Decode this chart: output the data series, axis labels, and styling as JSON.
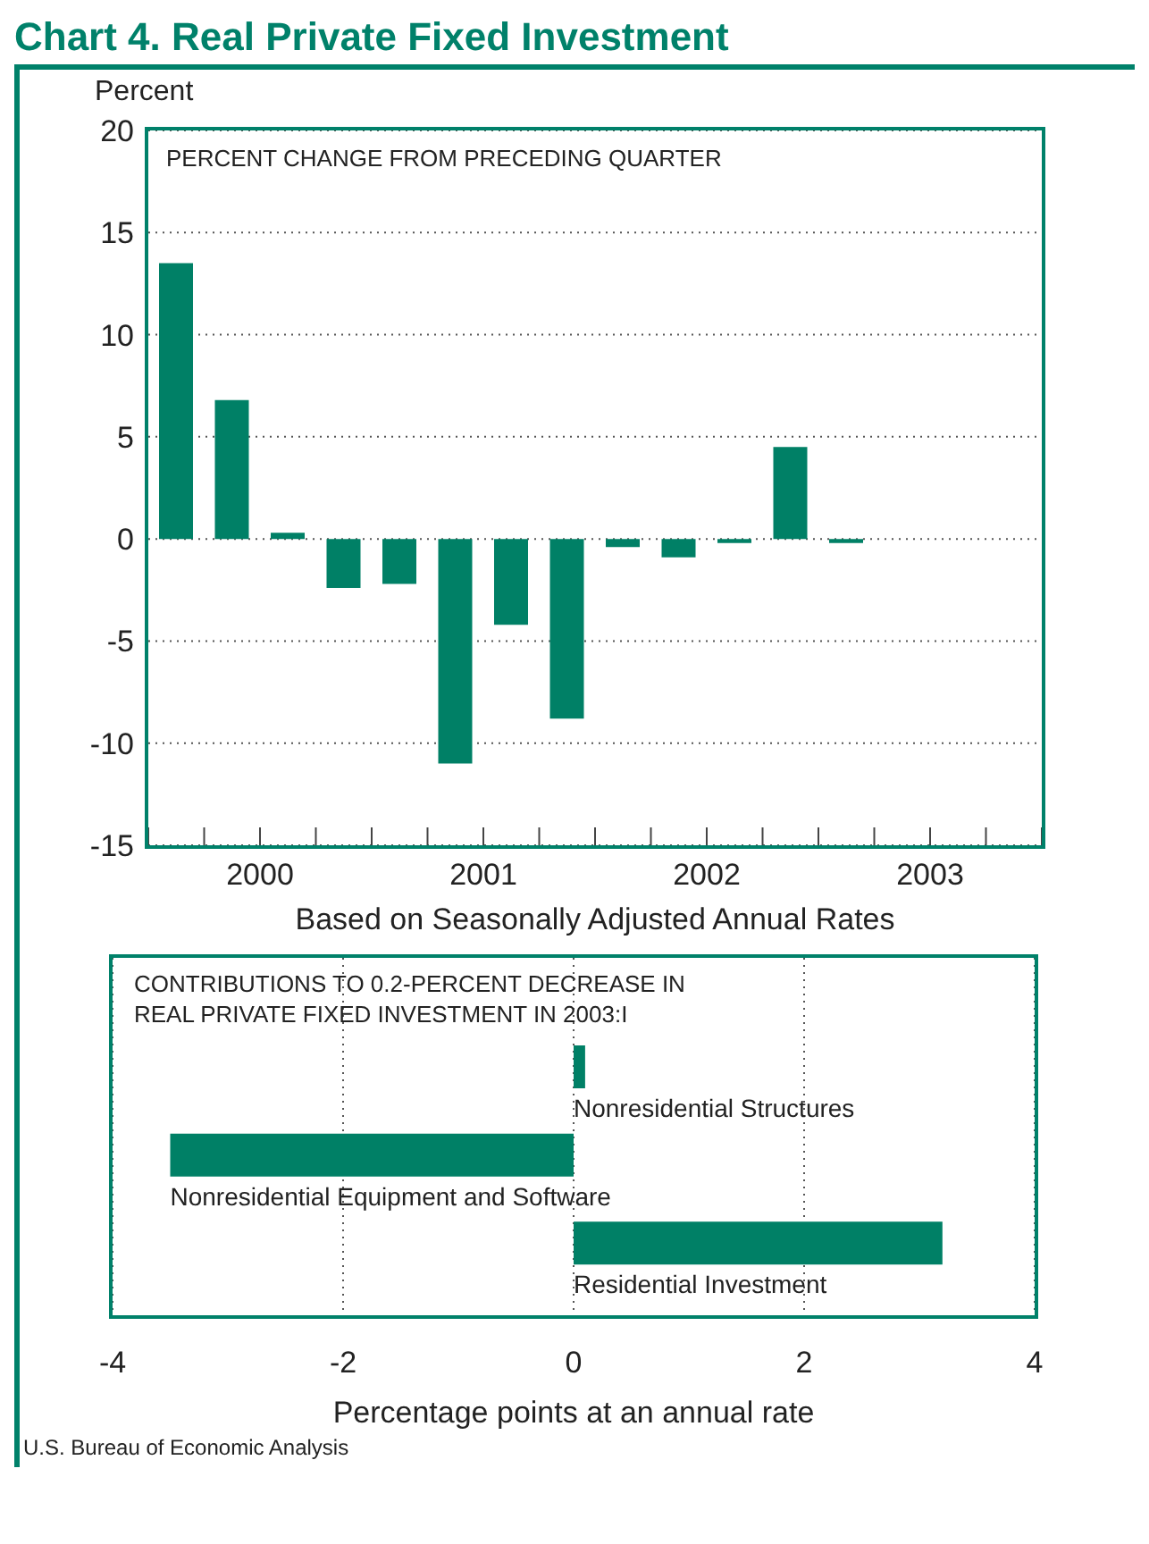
{
  "chart_data": [
    {
      "type": "bar",
      "title": "Chart 4. Real Private Fixed Investment",
      "subtitle": "PERCENT CHANGE FROM PRECEDING QUARTER",
      "ylabel": "Percent",
      "xlabel": "Based on Seasonally Adjusted Annual Rates",
      "x": [
        2000.125,
        2000.375,
        2000.625,
        2000.875,
        2001.125,
        2001.375,
        2001.625,
        2001.875,
        2002.125,
        2002.375,
        2002.625,
        2002.875,
        2003.125
      ],
      "values": [
        13.5,
        6.8,
        0.3,
        -2.4,
        -2.2,
        -11.0,
        -4.2,
        -8.8,
        -0.4,
        -0.9,
        -0.2,
        4.5,
        -0.2
      ],
      "color": "#008066",
      "xlim": [
        2000,
        2004
      ],
      "xticks": [
        {
          "value": 2000,
          "label": null
        },
        {
          "value": 2000.25,
          "label": null
        },
        {
          "value": 2000.5,
          "label": "2000"
        },
        {
          "value": 2000.75,
          "label": null
        },
        {
          "value": 2001,
          "label": null
        },
        {
          "value": 2001.25,
          "label": null
        },
        {
          "value": 2001.5,
          "label": "2001"
        },
        {
          "value": 2001.75,
          "label": null
        },
        {
          "value": 2002,
          "label": null
        },
        {
          "value": 2002.25,
          "label": null
        },
        {
          "value": 2002.5,
          "label": "2002"
        },
        {
          "value": 2002.75,
          "label": null
        },
        {
          "value": 2003,
          "label": null
        },
        {
          "value": 2003.25,
          "label": null
        },
        {
          "value": 2003.5,
          "label": "2003"
        },
        {
          "value": 2003.75,
          "label": null
        },
        {
          "value": 2004,
          "label": null
        }
      ],
      "ylim": [
        -15,
        20
      ],
      "yticks": [
        -15,
        -10,
        -5,
        0,
        5,
        10,
        15,
        20
      ],
      "grid": "y"
    },
    {
      "type": "bar",
      "orientation": "horizontal",
      "title": "CONTRIBUTIONS TO 0.2-PERCENT DECREASE IN REAL PRIVATE FIXED INVESTMENT IN 2003:I",
      "xlabel": "Percentage points at an annual rate",
      "categories": [
        "Nonresidential Structures",
        "Nonresidential Equipment and Software",
        "Residential Investment"
      ],
      "values": [
        0.1,
        -3.5,
        3.2
      ],
      "color": "#008066",
      "xlim": [
        -4,
        4
      ],
      "xticks": [
        -4,
        -2,
        0,
        2,
        4
      ],
      "grid": "x",
      "annotations": [
        "U.S. Bureau of Economic Analysis"
      ]
    }
  ]
}
